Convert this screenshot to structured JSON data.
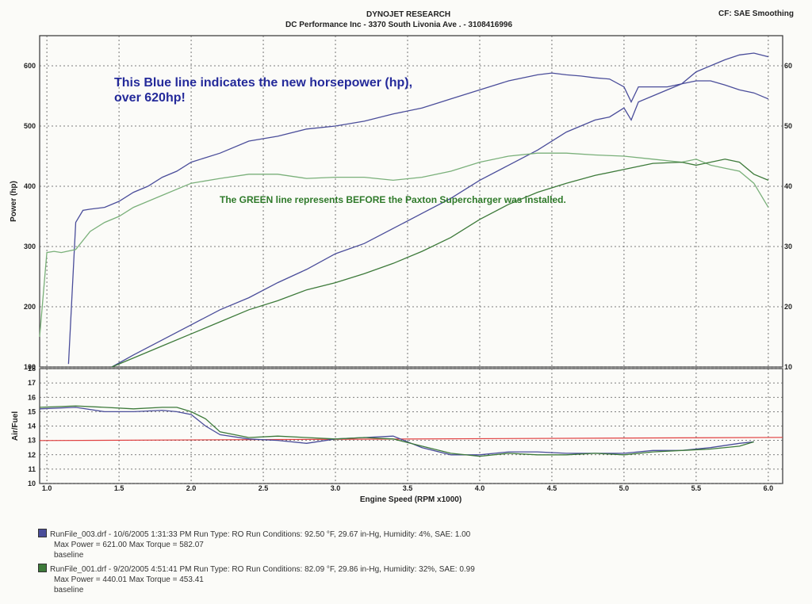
{
  "header": {
    "title": "DYNOJET RESEARCH",
    "subtitle": "DC Performance Inc - 3370 South Livonia Ave . - 3108416996",
    "cf": "CF: SAE Smoothing"
  },
  "annotations": {
    "blue_line_1": "This Blue line indicates the new horsepower (hp),",
    "blue_line_2": "over 620hp!",
    "green_line": "The GREEN line represents BEFORE the Paxton Supercharger was installed."
  },
  "colors": {
    "blue": "#4a4d9a",
    "green": "#3d7a3a",
    "green_light": "#7ab07a",
    "red": "#e04040",
    "text_blue": "#242a9a",
    "text_green": "#2f7a2a"
  },
  "chart_data": [
    {
      "type": "line",
      "xlabel": "Engine Speed (RPM x1000)",
      "ylabel": "Power (hp)",
      "xlim": [
        0.95,
        6.05
      ],
      "ylim": [
        100,
        650
      ],
      "yticks": [
        100,
        200,
        300,
        400,
        500,
        600
      ],
      "xticks": [
        1.0,
        1.5,
        2.0,
        2.5,
        3.0,
        3.5,
        4.0,
        4.5,
        5.0,
        5.5,
        6.0
      ],
      "right_ticks": [
        "10",
        "20",
        "30",
        "40",
        "50",
        "60"
      ],
      "grid": true,
      "series": [
        {
          "color": "blue",
          "x": [
            1.15,
            1.2,
            1.25,
            1.3,
            1.4,
            1.5,
            1.6,
            1.7,
            1.8,
            1.9,
            2.0,
            2.2,
            2.4,
            2.6,
            2.8,
            3.0,
            3.2,
            3.4,
            3.6,
            3.8,
            4.0,
            4.2,
            4.4,
            4.5,
            4.6,
            4.7,
            4.8,
            4.9,
            5.0,
            5.05,
            5.1,
            5.2,
            5.3,
            5.4,
            5.5,
            5.6,
            5.7,
            5.8,
            5.9,
            6.0
          ],
          "y": [
            105,
            340,
            360,
            362,
            365,
            375,
            390,
            400,
            415,
            425,
            440,
            455,
            475,
            483,
            495,
            500,
            508,
            520,
            530,
            545,
            560,
            575,
            585,
            588,
            585,
            583,
            580,
            578,
            565,
            540,
            565,
            565,
            565,
            570,
            575,
            575,
            568,
            560,
            555,
            545
          ]
        },
        {
          "color": "blue",
          "x": [
            1.45,
            1.6,
            1.8,
            2.0,
            2.2,
            2.4,
            2.6,
            2.8,
            3.0,
            3.2,
            3.4,
            3.6,
            3.8,
            4.0,
            4.2,
            4.4,
            4.6,
            4.8,
            4.9,
            5.0,
            5.05,
            5.1,
            5.2,
            5.3,
            5.4,
            5.5,
            5.6,
            5.7,
            5.8,
            5.9,
            6.0
          ],
          "y": [
            100,
            120,
            145,
            170,
            195,
            215,
            240,
            262,
            288,
            305,
            330,
            355,
            380,
            410,
            435,
            460,
            490,
            510,
            515,
            530,
            510,
            540,
            550,
            560,
            570,
            590,
            600,
            610,
            618,
            621,
            615
          ]
        },
        {
          "color": "green_light",
          "x": [
            0.95,
            1.0,
            1.05,
            1.1,
            1.2,
            1.3,
            1.4,
            1.5,
            1.6,
            1.8,
            2.0,
            2.2,
            2.4,
            2.6,
            2.8,
            3.0,
            3.2,
            3.4,
            3.6,
            3.8,
            4.0,
            4.2,
            4.4,
            4.6,
            4.8,
            5.0,
            5.2,
            5.4,
            5.5,
            5.6,
            5.7,
            5.8,
            5.9,
            6.0
          ],
          "y": [
            150,
            290,
            292,
            290,
            295,
            325,
            340,
            350,
            365,
            385,
            405,
            413,
            420,
            420,
            413,
            415,
            415,
            410,
            415,
            425,
            440,
            450,
            455,
            455,
            452,
            450,
            445,
            440,
            445,
            435,
            430,
            425,
            405,
            365
          ]
        },
        {
          "color": "green",
          "x": [
            1.45,
            1.6,
            1.8,
            2.0,
            2.2,
            2.4,
            2.6,
            2.8,
            3.0,
            3.2,
            3.4,
            3.6,
            3.8,
            4.0,
            4.2,
            4.4,
            4.6,
            4.8,
            5.0,
            5.2,
            5.4,
            5.5,
            5.6,
            5.7,
            5.8,
            5.9,
            6.0
          ],
          "y": [
            100,
            115,
            135,
            155,
            175,
            195,
            210,
            228,
            240,
            255,
            272,
            292,
            315,
            345,
            370,
            390,
            405,
            418,
            428,
            438,
            440,
            435,
            440,
            445,
            440,
            420,
            410
          ]
        }
      ]
    },
    {
      "type": "line",
      "xlabel": "Engine Speed (RPM x1000)",
      "ylabel": "Air/Fuel",
      "xlim": [
        0.95,
        6.05
      ],
      "ylim": [
        10,
        18
      ],
      "yticks": [
        10,
        11,
        12,
        13,
        14,
        15,
        16,
        17,
        18
      ],
      "xticks": [
        1.0,
        1.5,
        2.0,
        2.5,
        3.0,
        3.5,
        4.0,
        4.5,
        5.0,
        5.5,
        6.0
      ],
      "reference_line": 13.1,
      "series": [
        {
          "color": "blue",
          "x": [
            0.95,
            1.2,
            1.4,
            1.6,
            1.8,
            1.9,
            2.0,
            2.1,
            2.2,
            2.4,
            2.6,
            2.8,
            3.0,
            3.2,
            3.4,
            3.6,
            3.8,
            4.0,
            4.2,
            4.4,
            4.6,
            4.8,
            5.0,
            5.2,
            5.4,
            5.6,
            5.8,
            5.9
          ],
          "y": [
            15.2,
            15.3,
            15.0,
            15.0,
            15.1,
            15.0,
            14.8,
            14.0,
            13.4,
            13.1,
            13.0,
            12.8,
            13.1,
            13.2,
            13.3,
            12.5,
            12.0,
            12.0,
            12.2,
            12.2,
            12.1,
            12.1,
            12.1,
            12.3,
            12.3,
            12.5,
            12.8,
            12.9
          ]
        },
        {
          "color": "green",
          "x": [
            0.95,
            1.2,
            1.4,
            1.6,
            1.8,
            1.9,
            2.0,
            2.1,
            2.2,
            2.4,
            2.6,
            2.8,
            3.0,
            3.2,
            3.4,
            3.6,
            3.8,
            4.0,
            4.2,
            4.4,
            4.6,
            4.8,
            5.0,
            5.2,
            5.4,
            5.6,
            5.8,
            5.9
          ],
          "y": [
            15.3,
            15.4,
            15.3,
            15.2,
            15.3,
            15.3,
            15.0,
            14.5,
            13.6,
            13.2,
            13.3,
            13.2,
            13.1,
            13.2,
            13.1,
            12.6,
            12.1,
            11.9,
            12.1,
            12.0,
            12.0,
            12.1,
            12.0,
            12.2,
            12.3,
            12.4,
            12.6,
            12.9
          ]
        }
      ]
    }
  ],
  "legend": [
    {
      "color": "blue",
      "line1": "RunFile_003.drf - 10/6/2005 1:31:33 PM  Run Type: RO  Run Conditions: 92.50 °F, 29.67 in-Hg,  Humidity:  4%, SAE: 1.00",
      "line2": "Max Power = 621.00  Max Torque = 582.07",
      "line3": "baseline"
    },
    {
      "color": "green",
      "line1": "RunFile_001.drf - 9/20/2005 4:51:41 PM  Run Type: RO  Run Conditions: 82.09 °F, 29.86 in-Hg,  Humidity:  32%, SAE: 0.99",
      "line2": "Max Power = 440.01  Max Torque = 453.41",
      "line3": "baseline"
    }
  ]
}
